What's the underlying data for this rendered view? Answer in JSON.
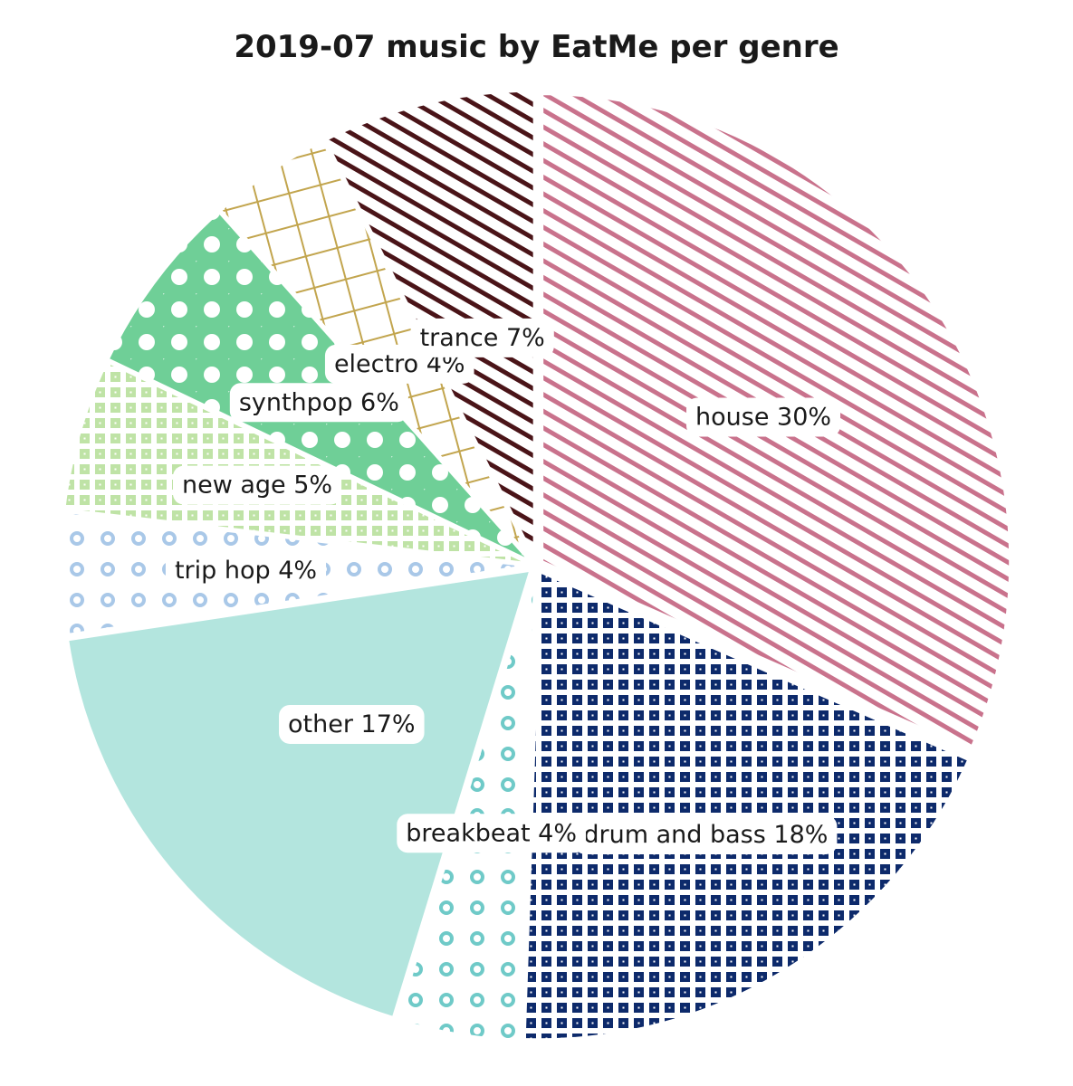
{
  "chart_data": {
    "type": "pie",
    "title": "2019-07 music by EatMe per genre",
    "slices": [
      {
        "label": "house",
        "value": 30,
        "display": "house 30%",
        "color": "#c9728c",
        "pattern": "diagonal-stripes"
      },
      {
        "label": "drum and bass",
        "value": 18,
        "display": "drum and bass 18%",
        "color": "#0d2a6b",
        "pattern": "square-grid"
      },
      {
        "label": "breakbeat",
        "value": 4,
        "display": "breakbeat 4%",
        "color": "#6fcac8",
        "pattern": "rings"
      },
      {
        "label": "other",
        "value": 17,
        "display": "other 17%",
        "color": "#b3e5de",
        "pattern": "solid"
      },
      {
        "label": "trip hop",
        "value": 4,
        "display": "trip hop 4%",
        "color": "#a9c8e8",
        "pattern": "rings"
      },
      {
        "label": "new age",
        "value": 5,
        "display": "new age 5%",
        "color": "#bfe3a6",
        "pattern": "square-grid"
      },
      {
        "label": "synthpop",
        "value": 6,
        "display": "synthpop 6%",
        "color": "#6fcf97",
        "pattern": "polka-dots"
      },
      {
        "label": "electro",
        "value": 4,
        "display": "electro 4%",
        "color": "#c2a54e",
        "pattern": "crosshatch"
      },
      {
        "label": "trance",
        "value": 7,
        "display": "trance 7%",
        "color": "#4a1418",
        "pattern": "diagonal-stripes"
      }
    ]
  }
}
